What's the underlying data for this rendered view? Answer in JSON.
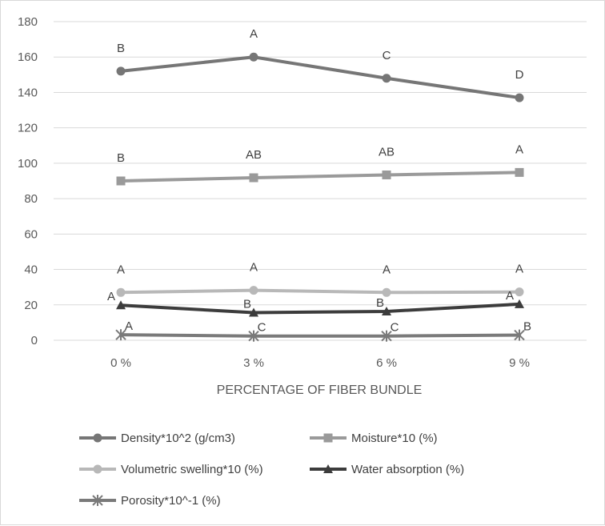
{
  "chart_data": {
    "type": "line",
    "title": "",
    "xlabel": "PERCENTAGE OF FIBER BUNDLE",
    "ylabel": "",
    "categories": [
      "0 %",
      "3 %",
      "6 %",
      "9 %"
    ],
    "ylim": [
      0,
      180
    ],
    "yticks": [
      0,
      20,
      40,
      60,
      80,
      100,
      120,
      140,
      160,
      180
    ],
    "grid": true,
    "legend_position": "bottom",
    "series": [
      {
        "name": "Density*10^2 (g/cm3)",
        "values": [
          152,
          160,
          148,
          137
        ],
        "labels": [
          "B",
          "A",
          "C",
          "D"
        ],
        "color": "#767676",
        "marker": "circle"
      },
      {
        "name": "Moisture*10 (%)",
        "values": [
          90,
          91.8,
          93.4,
          94.8
        ],
        "labels": [
          "B",
          "AB",
          "AB",
          "A"
        ],
        "color": "#9a9a9a",
        "marker": "square"
      },
      {
        "name": "Volumetric swelling*10 (%)",
        "values": [
          27,
          28.2,
          27,
          27.3
        ],
        "labels": [
          "A",
          "A",
          "A",
          "A"
        ],
        "color": "#b8b8b8",
        "marker": "circle"
      },
      {
        "name": "Water absorption (%)",
        "values": [
          19.8,
          15.6,
          16.3,
          20.4
        ],
        "labels": [
          "A",
          "B",
          "B",
          "A"
        ],
        "color": "#3c3c3c",
        "marker": "triangle"
      },
      {
        "name": "Porosity*10^-1 (%)",
        "values": [
          3.1,
          2.4,
          2.4,
          2.9
        ],
        "labels": [
          "A",
          "C",
          "C",
          "B"
        ],
        "color": "#7a7a7a",
        "marker": "star"
      }
    ]
  }
}
